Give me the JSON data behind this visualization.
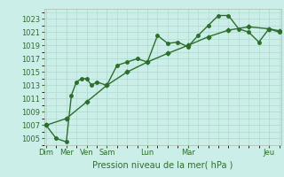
{
  "background_color": "#cceee8",
  "grid_color": "#aad8cc",
  "line_color": "#2d6e2d",
  "xlabel": "Pression niveau de la mer( hPa )",
  "ylim_bottom": 1004.0,
  "ylim_top": 1024.5,
  "yticks": [
    1005,
    1007,
    1009,
    1011,
    1013,
    1015,
    1017,
    1019,
    1021,
    1023
  ],
  "day_positions": [
    0,
    2,
    4,
    6,
    8,
    10,
    12,
    16,
    20,
    22
  ],
  "day_labels": [
    "Dim",
    "Mer",
    "Ven",
    "Sam",
    "Lun",
    "Mar",
    "",
    "",
    "",
    "Jeu"
  ],
  "xlim_left": -0.2,
  "xlim_right": 23.2,
  "line1_x": [
    0,
    1,
    2,
    2.5,
    3,
    3.5,
    4,
    4.5,
    5,
    6,
    7,
    8,
    9,
    10,
    11,
    12,
    13,
    14,
    15,
    16,
    17,
    18,
    19,
    20,
    21,
    22,
    23
  ],
  "line1_y": [
    1007,
    1005,
    1004.5,
    1011.5,
    1013.5,
    1014,
    1014,
    1013,
    1013.5,
    1013,
    1016,
    1016.5,
    1017,
    1016.5,
    1020.5,
    1019.3,
    1019.5,
    1018.8,
    1020.5,
    1022.0,
    1023.5,
    1023.5,
    1021.5,
    1021.0,
    1019.5,
    1021.5,
    1021.0
  ],
  "line2_x": [
    0,
    2,
    4,
    6,
    8,
    10,
    12,
    14,
    16,
    18,
    20,
    22,
    23
  ],
  "line2_y": [
    1007,
    1008.0,
    1010.5,
    1013.0,
    1015.0,
    1016.5,
    1017.8,
    1019.0,
    1020.3,
    1021.3,
    1021.8,
    1021.5,
    1021.2
  ],
  "marker_size": 2.5,
  "linewidth": 1.0,
  "fontsize_tick": 6,
  "fontsize_xlabel": 7
}
